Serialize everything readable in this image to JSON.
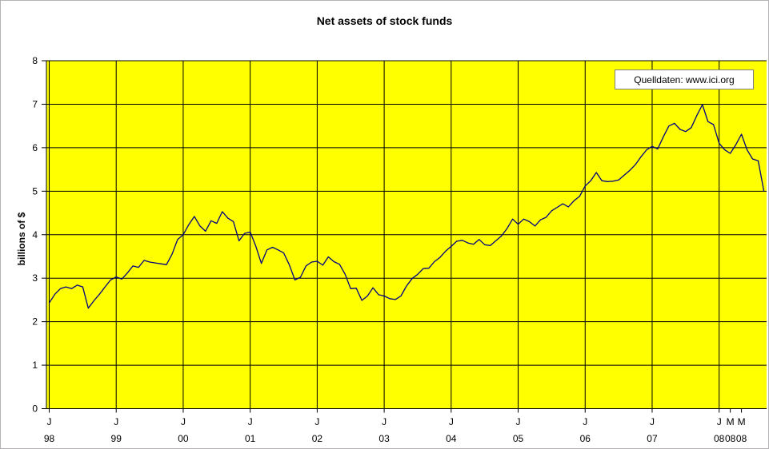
{
  "window": {
    "title": "Net assets of stock funds"
  },
  "legend": {
    "label": "Quelldaten: www.ici.org",
    "position": "top-right"
  },
  "colors": {
    "plot_background": "#ffff00",
    "series_line": "#000080",
    "gridline": "#000000",
    "text": "#000000",
    "legend_border": "#7f7f7f",
    "outer_background": "#ffffff"
  },
  "chart_data": {
    "type": "line",
    "title": "Net assets of stock funds",
    "xlabel": "",
    "ylabel": "billions of $",
    "ylim": [
      0,
      8
    ],
    "y_ticks": [
      0,
      1,
      2,
      3,
      4,
      5,
      6,
      7,
      8
    ],
    "grid": true,
    "legend_position": "top-right",
    "x_unit": "month",
    "x_start": "1998-01",
    "x_end": "2008-09",
    "x_ticks": [
      {
        "month": "J",
        "year": "98",
        "index": 0,
        "gridline": true
      },
      {
        "month": "J",
        "year": "99",
        "index": 12,
        "gridline": true
      },
      {
        "month": "J",
        "year": "00",
        "index": 24,
        "gridline": true
      },
      {
        "month": "J",
        "year": "01",
        "index": 36,
        "gridline": true
      },
      {
        "month": "J",
        "year": "02",
        "index": 48,
        "gridline": true
      },
      {
        "month": "J",
        "year": "03",
        "index": 60,
        "gridline": true
      },
      {
        "month": "J",
        "year": "04",
        "index": 72,
        "gridline": true
      },
      {
        "month": "J",
        "year": "05",
        "index": 84,
        "gridline": true
      },
      {
        "month": "J",
        "year": "06",
        "index": 96,
        "gridline": true
      },
      {
        "month": "J",
        "year": "07",
        "index": 108,
        "gridline": true
      },
      {
        "month": "J",
        "year": "08",
        "index": 120,
        "gridline": true
      },
      {
        "month": "M",
        "year": "08",
        "index": 122,
        "gridline": false
      },
      {
        "month": "M",
        "year": "08",
        "index": 124,
        "gridline": false
      }
    ],
    "series": [
      {
        "name": "Net assets of stock funds",
        "values": [
          2.43,
          2.63,
          2.76,
          2.8,
          2.76,
          2.84,
          2.8,
          2.31,
          2.48,
          2.63,
          2.8,
          2.96,
          3.03,
          2.98,
          3.12,
          3.28,
          3.25,
          3.41,
          3.37,
          3.35,
          3.33,
          3.31,
          3.55,
          3.89,
          4.0,
          4.23,
          4.42,
          4.2,
          4.08,
          4.32,
          4.26,
          4.53,
          4.38,
          4.3,
          3.86,
          4.03,
          4.06,
          3.74,
          3.34,
          3.65,
          3.71,
          3.65,
          3.58,
          3.31,
          2.96,
          3.02,
          3.28,
          3.37,
          3.39,
          3.3,
          3.49,
          3.38,
          3.32,
          3.09,
          2.76,
          2.77,
          2.49,
          2.59,
          2.78,
          2.62,
          2.59,
          2.53,
          2.51,
          2.59,
          2.82,
          2.99,
          3.09,
          3.22,
          3.23,
          3.38,
          3.48,
          3.62,
          3.73,
          3.85,
          3.87,
          3.81,
          3.78,
          3.89,
          3.77,
          3.75,
          3.86,
          3.97,
          4.14,
          4.36,
          4.24,
          4.36,
          4.3,
          4.2,
          4.34,
          4.4,
          4.55,
          4.63,
          4.71,
          4.64,
          4.78,
          4.88,
          5.12,
          5.24,
          5.43,
          5.24,
          5.22,
          5.23,
          5.26,
          5.37,
          5.48,
          5.61,
          5.79,
          5.95,
          6.03,
          5.97,
          6.25,
          6.5,
          6.56,
          6.42,
          6.37,
          6.46,
          6.74,
          6.99,
          6.6,
          6.53,
          6.1,
          5.95,
          5.87,
          6.07,
          6.31,
          5.95,
          5.74,
          5.7,
          5.01
        ]
      }
    ]
  }
}
